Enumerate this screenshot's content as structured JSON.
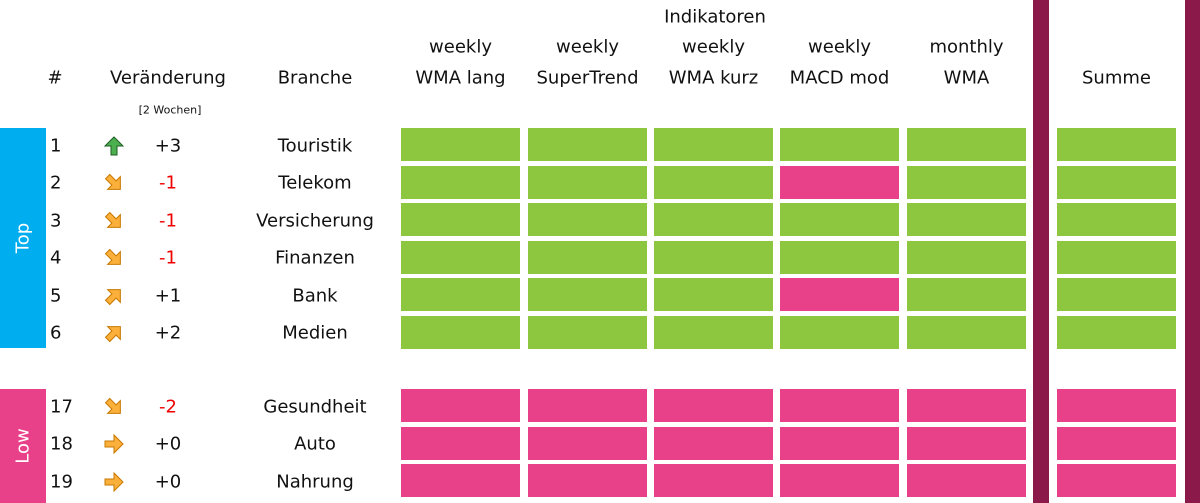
{
  "header": {
    "title": "Indikatoren",
    "rank": "#",
    "change": "Veränderung",
    "change_note": "[2 Wochen]",
    "sector": "Branche",
    "columns": [
      {
        "line1": "weekly",
        "line2": "WMA lang"
      },
      {
        "line1": "weekly",
        "line2": "SuperTrend"
      },
      {
        "line1": "weekly",
        "line2": "WMA kurz"
      },
      {
        "line1": "weekly",
        "line2": "MACD mod"
      },
      {
        "line1": "monthly",
        "line2": "WMA"
      }
    ],
    "sum": "Summe"
  },
  "groups": [
    {
      "label": "Top",
      "color": "#00aeef",
      "rows": [
        {
          "rank": "1",
          "arrow": "up",
          "change": "+3",
          "sector": "Touristik",
          "signals": [
            "#8dc63f",
            "#8dc63f",
            "#8dc63f",
            "#8dc63f",
            "#8dc63f"
          ],
          "sum": "#8dc63f"
        },
        {
          "rank": "2",
          "arrow": "down-right",
          "change": "-1",
          "sector": "Telekom",
          "signals": [
            "#8dc63f",
            "#8dc63f",
            "#8dc63f",
            "#e8418a",
            "#8dc63f"
          ],
          "sum": "#8dc63f"
        },
        {
          "rank": "3",
          "arrow": "down-right",
          "change": "-1",
          "sector": "Versicherung",
          "signals": [
            "#8dc63f",
            "#8dc63f",
            "#8dc63f",
            "#8dc63f",
            "#8dc63f"
          ],
          "sum": "#8dc63f"
        },
        {
          "rank": "4",
          "arrow": "down-right",
          "change": "-1",
          "sector": "Finanzen",
          "signals": [
            "#8dc63f",
            "#8dc63f",
            "#8dc63f",
            "#8dc63f",
            "#8dc63f"
          ],
          "sum": "#8dc63f"
        },
        {
          "rank": "5",
          "arrow": "up-right",
          "change": "+1",
          "sector": "Bank",
          "signals": [
            "#8dc63f",
            "#8dc63f",
            "#8dc63f",
            "#e8418a",
            "#8dc63f"
          ],
          "sum": "#8dc63f"
        },
        {
          "rank": "6",
          "arrow": "up-right",
          "change": "+2",
          "sector": "Medien",
          "signals": [
            "#8dc63f",
            "#8dc63f",
            "#8dc63f",
            "#8dc63f",
            "#8dc63f"
          ],
          "sum": "#8dc63f"
        }
      ]
    },
    {
      "label": "Low",
      "color": "#e8418a",
      "rows": [
        {
          "rank": "17",
          "arrow": "down-right",
          "change": "-2",
          "sector": "Gesundheit",
          "signals": [
            "#e8418a",
            "#e8418a",
            "#e8418a",
            "#e8418a",
            "#e8418a"
          ],
          "sum": "#e8418a"
        },
        {
          "rank": "18",
          "arrow": "right",
          "change": "+0",
          "sector": "Auto",
          "signals": [
            "#e8418a",
            "#e8418a",
            "#e8418a",
            "#e8418a",
            "#e8418a"
          ],
          "sum": "#e8418a"
        },
        {
          "rank": "19",
          "arrow": "right",
          "change": "+0",
          "sector": "Nahrung",
          "signals": [
            "#e8418a",
            "#e8418a",
            "#e8418a",
            "#e8418a",
            "#e8418a"
          ],
          "sum": "#e8418a"
        }
      ]
    }
  ]
}
